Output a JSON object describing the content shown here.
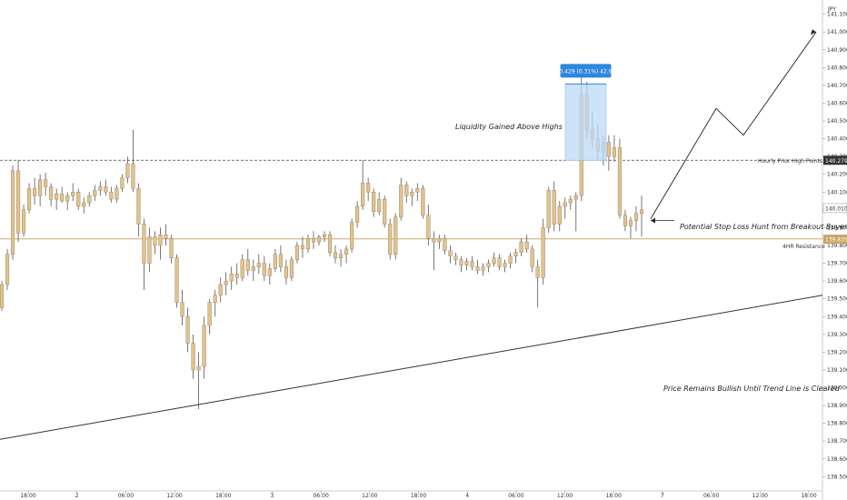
{
  "chart_data": {
    "type": "candlestick",
    "currency": "JPY",
    "y_range": [
      138.42,
      141.18
    ],
    "y_ticks": [
      "141.100",
      "141.000",
      "140.900",
      "140.800",
      "140.700",
      "140.600",
      "140.500",
      "140.400",
      "140.300",
      "140.200",
      "140.100",
      "140.000",
      "139.900",
      "139.800",
      "139.700",
      "139.600",
      "139.500",
      "139.400",
      "139.300",
      "139.200",
      "139.100",
      "139.000",
      "138.900",
      "138.800",
      "138.700",
      "138.600",
      "138.500"
    ],
    "x_labels": [
      "18:00",
      "2",
      "06:00",
      "12:00",
      "18:00",
      "3",
      "06:00",
      "12:00",
      "18:00",
      "4",
      "06:00",
      "12:00",
      "18:00",
      "7",
      "06:00",
      "12:00",
      "18:00"
    ],
    "candles": [
      [
        139.45,
        139.6,
        139.43,
        139.58
      ],
      [
        139.58,
        139.78,
        139.55,
        139.75
      ],
      [
        139.75,
        140.25,
        139.72,
        140.22
      ],
      [
        140.22,
        140.28,
        139.82,
        139.87
      ],
      [
        139.87,
        140.03,
        139.85,
        140.0
      ],
      [
        140.0,
        140.15,
        139.98,
        140.12
      ],
      [
        140.12,
        140.18,
        140.03,
        140.08
      ],
      [
        140.08,
        140.2,
        140.02,
        140.17
      ],
      [
        140.17,
        140.21,
        140.08,
        140.13
      ],
      [
        140.13,
        140.15,
        140.02,
        140.06
      ],
      [
        140.06,
        140.12,
        140.0,
        140.09
      ],
      [
        140.09,
        140.13,
        140.04,
        140.05
      ],
      [
        140.05,
        140.1,
        140.0,
        140.08
      ],
      [
        140.08,
        140.15,
        140.05,
        140.1
      ],
      [
        140.1,
        140.12,
        140.0,
        140.02
      ],
      [
        140.02,
        140.07,
        139.98,
        140.04
      ],
      [
        140.04,
        140.1,
        140.02,
        140.08
      ],
      [
        140.08,
        140.14,
        140.05,
        140.11
      ],
      [
        140.11,
        140.16,
        140.08,
        140.13
      ],
      [
        140.13,
        140.17,
        140.08,
        140.1
      ],
      [
        140.1,
        140.13,
        140.04,
        140.06
      ],
      [
        140.06,
        140.14,
        140.04,
        140.12
      ],
      [
        140.12,
        140.2,
        140.1,
        140.18
      ],
      [
        140.18,
        140.3,
        140.15,
        140.26
      ],
      [
        140.26,
        140.45,
        140.1,
        140.12
      ],
      [
        140.12,
        140.15,
        139.85,
        139.92
      ],
      [
        139.92,
        139.95,
        139.55,
        139.7
      ],
      [
        139.7,
        139.9,
        139.65,
        139.85
      ],
      [
        139.85,
        139.88,
        139.75,
        139.8
      ],
      [
        139.8,
        139.9,
        139.72,
        139.86
      ],
      [
        139.86,
        139.92,
        139.8,
        139.84
      ],
      [
        139.84,
        139.86,
        139.7,
        139.73
      ],
      [
        139.73,
        139.75,
        139.45,
        139.48
      ],
      [
        139.48,
        139.55,
        139.35,
        139.4
      ],
      [
        139.4,
        139.45,
        139.2,
        139.25
      ],
      [
        139.25,
        139.3,
        139.05,
        139.1
      ],
      [
        139.1,
        139.2,
        138.88,
        139.12
      ],
      [
        139.12,
        139.4,
        139.05,
        139.35
      ],
      [
        139.35,
        139.5,
        139.3,
        139.48
      ],
      [
        139.48,
        139.55,
        139.4,
        139.52
      ],
      [
        139.52,
        139.62,
        139.48,
        139.58
      ],
      [
        139.58,
        139.65,
        139.52,
        139.6
      ],
      [
        139.6,
        139.68,
        139.55,
        139.64
      ],
      [
        139.64,
        139.7,
        139.58,
        139.62
      ],
      [
        139.62,
        139.75,
        139.6,
        139.72
      ],
      [
        139.72,
        139.78,
        139.63,
        139.66
      ],
      [
        139.66,
        139.72,
        139.6,
        139.68
      ],
      [
        139.68,
        139.75,
        139.64,
        139.7
      ],
      [
        139.7,
        139.74,
        139.6,
        139.63
      ],
      [
        139.63,
        139.7,
        139.58,
        139.67
      ],
      [
        139.67,
        139.78,
        139.65,
        139.75
      ],
      [
        139.75,
        139.8,
        139.65,
        139.68
      ],
      [
        139.68,
        139.72,
        139.58,
        139.62
      ],
      [
        139.62,
        139.74,
        139.6,
        139.72
      ],
      [
        139.72,
        139.82,
        139.7,
        139.8
      ],
      [
        139.8,
        139.85,
        139.73,
        139.78
      ],
      [
        139.78,
        139.86,
        139.76,
        139.84
      ],
      [
        139.84,
        139.88,
        139.78,
        139.82
      ],
      [
        139.82,
        139.86,
        139.8,
        139.85
      ],
      [
        139.85,
        139.88,
        139.82,
        139.86
      ],
      [
        139.86,
        139.88,
        139.74,
        139.76
      ],
      [
        139.76,
        139.8,
        139.7,
        139.73
      ],
      [
        139.73,
        139.78,
        139.68,
        139.75
      ],
      [
        139.75,
        139.8,
        139.7,
        139.78
      ],
      [
        139.78,
        139.95,
        139.76,
        139.93
      ],
      [
        139.93,
        140.05,
        139.9,
        140.02
      ],
      [
        140.02,
        140.28,
        140.0,
        140.15
      ],
      [
        140.15,
        140.18,
        140.05,
        140.1
      ],
      [
        140.1,
        140.12,
        139.96,
        139.99
      ],
      [
        139.99,
        140.1,
        139.97,
        140.06
      ],
      [
        140.06,
        140.08,
        139.9,
        139.92
      ],
      [
        139.92,
        139.95,
        139.72,
        139.75
      ],
      [
        139.75,
        139.98,
        139.72,
        139.96
      ],
      [
        139.96,
        140.18,
        139.94,
        140.14
      ],
      [
        140.14,
        140.16,
        140.04,
        140.08
      ],
      [
        140.08,
        140.12,
        140.02,
        140.1
      ],
      [
        140.1,
        140.15,
        140.05,
        140.12
      ],
      [
        140.12,
        140.14,
        139.95,
        139.97
      ],
      [
        139.97,
        140.03,
        139.8,
        139.84
      ],
      [
        139.84,
        139.88,
        139.66,
        139.82
      ],
      [
        139.82,
        139.86,
        139.78,
        139.84
      ],
      [
        139.84,
        139.86,
        139.75,
        139.77
      ],
      [
        139.77,
        139.8,
        139.7,
        139.74
      ],
      [
        139.74,
        139.76,
        139.69,
        139.72
      ],
      [
        139.72,
        139.74,
        139.65,
        139.69
      ],
      [
        139.69,
        139.73,
        139.66,
        139.71
      ],
      [
        139.71,
        139.74,
        139.66,
        139.68
      ],
      [
        139.68,
        139.72,
        139.64,
        139.66
      ],
      [
        139.66,
        139.7,
        139.63,
        139.68
      ],
      [
        139.68,
        139.72,
        139.65,
        139.7
      ],
      [
        139.7,
        139.76,
        139.68,
        139.73
      ],
      [
        139.73,
        139.75,
        139.66,
        139.68
      ],
      [
        139.68,
        139.72,
        139.65,
        139.7
      ],
      [
        139.7,
        139.76,
        139.67,
        139.74
      ],
      [
        139.74,
        139.78,
        139.7,
        139.76
      ],
      [
        139.76,
        139.84,
        139.74,
        139.82
      ],
      [
        139.82,
        139.86,
        139.76,
        139.78
      ],
      [
        139.78,
        139.8,
        139.65,
        139.68
      ],
      [
        139.68,
        139.72,
        139.45,
        139.62
      ],
      [
        139.62,
        139.95,
        139.58,
        139.9
      ],
      [
        139.9,
        140.13,
        139.87,
        140.11
      ],
      [
        140.11,
        140.16,
        139.88,
        139.92
      ],
      [
        139.92,
        140.05,
        139.88,
        140.02
      ],
      [
        140.02,
        140.07,
        139.95,
        140.04
      ],
      [
        140.04,
        140.08,
        140.0,
        140.06
      ],
      [
        140.06,
        140.1,
        139.88,
        140.08
      ],
      [
        140.08,
        140.75,
        140.05,
        140.65
      ],
      [
        140.65,
        140.72,
        140.4,
        140.45
      ],
      [
        140.45,
        140.55,
        140.35,
        140.4
      ],
      [
        140.4,
        140.48,
        140.28,
        140.33
      ],
      [
        140.33,
        140.42,
        140.25,
        140.38
      ],
      [
        140.38,
        140.42,
        140.22,
        140.3
      ],
      [
        140.3,
        140.42,
        140.27,
        140.35
      ],
      [
        140.35,
        140.4,
        139.95,
        139.97
      ],
      [
        139.97,
        140.0,
        139.88,
        139.91
      ],
      [
        139.91,
        139.96,
        139.84,
        139.94
      ],
      [
        139.94,
        140.02,
        139.88,
        139.98
      ],
      [
        139.98,
        140.08,
        139.85,
        140.0
      ]
    ],
    "support_line_4hr": 139.837,
    "prior_high_line": 140.279,
    "range_box": {
      "low": 140.279,
      "high": 140.708
    },
    "range_label": "0.429 (0.31%) 42.9",
    "trend_line": {
      "start": 138.71,
      "end": 139.52
    },
    "projection_path": [
      139.95,
      140.57,
      140.42,
      141.0
    ],
    "price_tags": [
      "140.279",
      "140.010",
      "139.835"
    ],
    "price_tag_values": [
      140.279,
      140.01,
      139.835
    ],
    "annotations": {
      "liquidity": "Liquidity Gained Above Highs",
      "stop_loss": "Potential Stop Loss Hunt from Breakout Buyers",
      "hourly_high": "Hourly Prior High Points",
      "resistance": "4HR Resistance",
      "bullish": "Price Remains Bullish Until Trend Line is Cleared"
    },
    "colors": {
      "candle_fill": "#e2c28e",
      "candle_wick": "#555555",
      "support_line": "#c8ab6e",
      "box": "#bcdaf5",
      "box_label_bg": "#2e86de",
      "tag_dark": "#333333",
      "tag_gold": "#c8a464",
      "trend": "#333333"
    }
  }
}
